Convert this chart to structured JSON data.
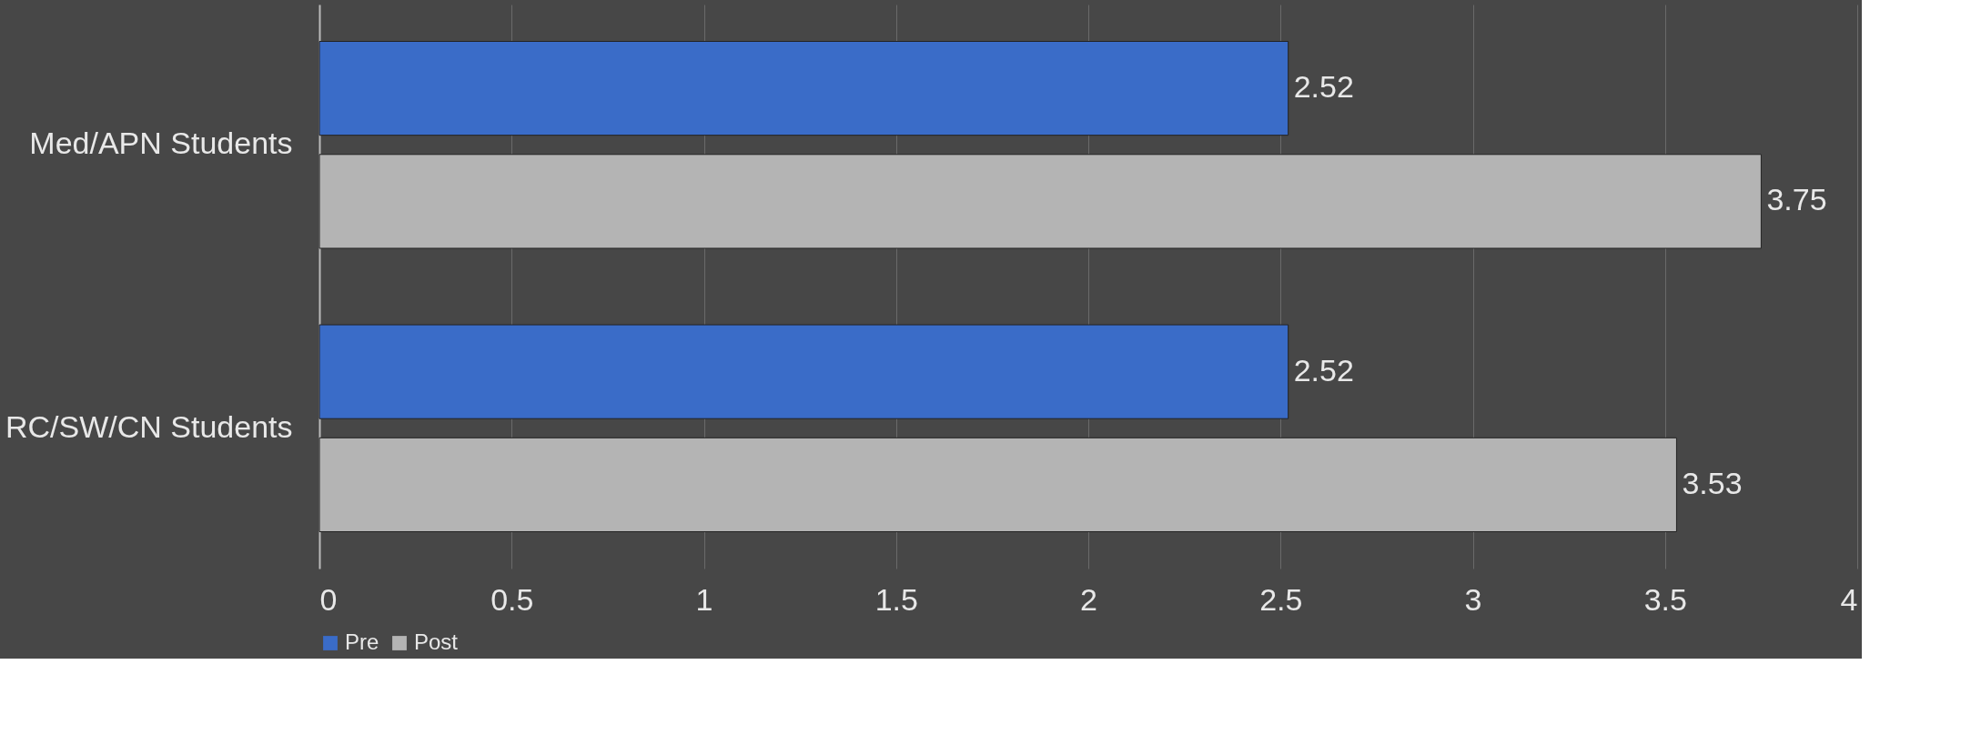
{
  "chart_data": {
    "type": "bar",
    "orientation": "horizontal",
    "categories": [
      "Med/APN Students",
      "RC/SW/CN Students"
    ],
    "series": [
      {
        "name": "Pre",
        "color": "#3a6cc8",
        "values": [
          2.52,
          2.52
        ]
      },
      {
        "name": "Post",
        "color": "#b4b4b4",
        "values": [
          3.75,
          3.53
        ]
      }
    ],
    "xlim": [
      0,
      4
    ],
    "xticks": [
      0,
      0.5,
      1,
      1.5,
      2,
      2.5,
      3,
      3.5,
      4
    ],
    "grid": "x",
    "legend": "bottom",
    "data_labels": true
  }
}
